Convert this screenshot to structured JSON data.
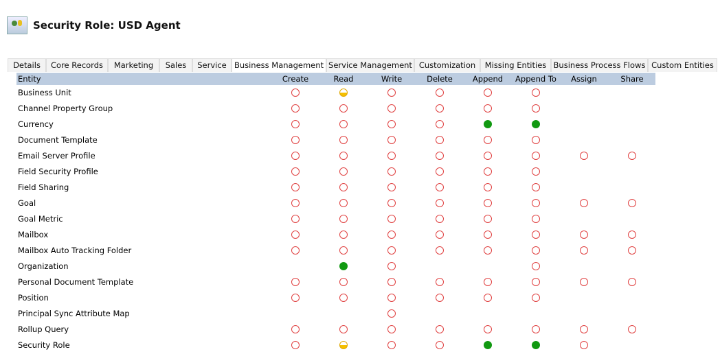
{
  "page": {
    "title": "Security Role: USD Agent",
    "icon": "security-role-icon"
  },
  "tabs": [
    "Details",
    "Core Records",
    "Marketing",
    "Sales",
    "Service",
    "Business Management",
    "Service Management",
    "Customization",
    "Missing Entities",
    "Business Process Flows",
    "Custom Entities"
  ],
  "active_tab": "Business Management",
  "columns": [
    "Entity",
    "Create",
    "Read",
    "Write",
    "Delete",
    "Append",
    "Append To",
    "Assign",
    "Share"
  ],
  "level_colors": {
    "none": "#e04040",
    "user": "#f5c000",
    "org": "#119911"
  },
  "rows": [
    {
      "entity": "Business Unit",
      "levels": [
        "none",
        "user",
        "none",
        "none",
        "none",
        "none",
        "",
        ""
      ]
    },
    {
      "entity": "Channel Property Group",
      "levels": [
        "none",
        "none",
        "none",
        "none",
        "none",
        "none",
        "",
        ""
      ]
    },
    {
      "entity": "Currency",
      "levels": [
        "none",
        "none",
        "none",
        "none",
        "org",
        "org",
        "",
        ""
      ]
    },
    {
      "entity": "Document Template",
      "levels": [
        "none",
        "none",
        "none",
        "none",
        "none",
        "none",
        "",
        ""
      ]
    },
    {
      "entity": "Email Server Profile",
      "levels": [
        "none",
        "none",
        "none",
        "none",
        "none",
        "none",
        "none",
        "none"
      ]
    },
    {
      "entity": "Field Security Profile",
      "levels": [
        "none",
        "none",
        "none",
        "none",
        "none",
        "none",
        "",
        ""
      ]
    },
    {
      "entity": "Field Sharing",
      "levels": [
        "none",
        "none",
        "none",
        "none",
        "none",
        "none",
        "",
        ""
      ]
    },
    {
      "entity": "Goal",
      "levels": [
        "none",
        "none",
        "none",
        "none",
        "none",
        "none",
        "none",
        "none"
      ]
    },
    {
      "entity": "Goal Metric",
      "levels": [
        "none",
        "none",
        "none",
        "none",
        "none",
        "none",
        "",
        ""
      ]
    },
    {
      "entity": "Mailbox",
      "levels": [
        "none",
        "none",
        "none",
        "none",
        "none",
        "none",
        "none",
        "none"
      ]
    },
    {
      "entity": "Mailbox Auto Tracking Folder",
      "levels": [
        "none",
        "none",
        "none",
        "none",
        "none",
        "none",
        "none",
        "none"
      ]
    },
    {
      "entity": "Organization",
      "levels": [
        "",
        "org",
        "none",
        "",
        "",
        "none",
        "",
        ""
      ]
    },
    {
      "entity": "Personal Document Template",
      "levels": [
        "none",
        "none",
        "none",
        "none",
        "none",
        "none",
        "none",
        "none"
      ]
    },
    {
      "entity": "Position",
      "levels": [
        "none",
        "none",
        "none",
        "none",
        "none",
        "none",
        "",
        ""
      ]
    },
    {
      "entity": "Principal Sync Attribute Map",
      "levels": [
        "",
        "",
        "none",
        "",
        "",
        "",
        "",
        ""
      ]
    },
    {
      "entity": "Rollup Query",
      "levels": [
        "none",
        "none",
        "none",
        "none",
        "none",
        "none",
        "none",
        "none"
      ]
    },
    {
      "entity": "Security Role",
      "levels": [
        "none",
        "user",
        "none",
        "none",
        "org",
        "org",
        "none",
        ""
      ]
    }
  ]
}
